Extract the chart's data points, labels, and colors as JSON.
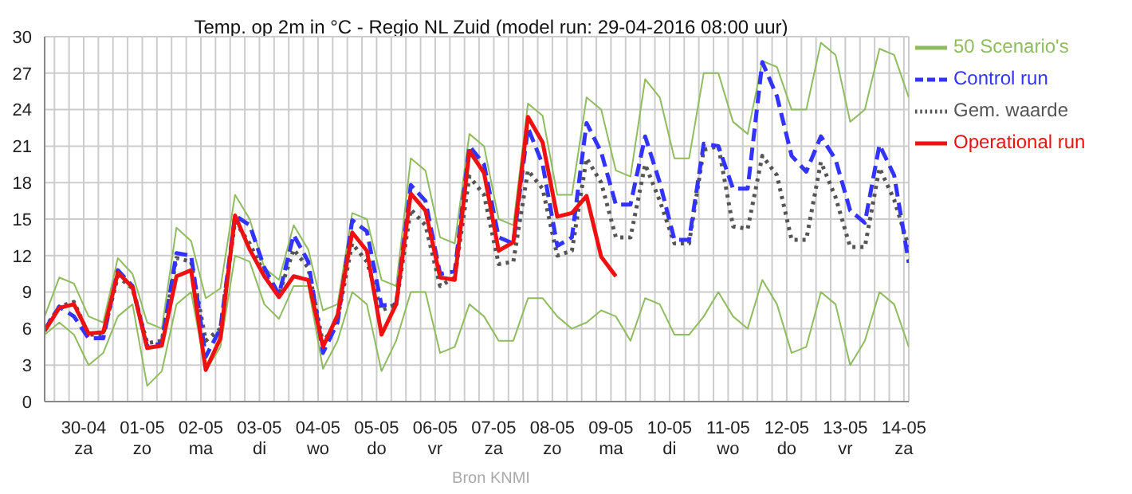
{
  "chart_data": {
    "type": "line",
    "title": "Temp. op 2m in °C - Regio NL Zuid (model run: 29-04-2016 08:00 uur)",
    "annotations": [
      "Bron KNMI"
    ],
    "x": [
      "2016-04-29T08:00",
      "2016-04-29T14:00",
      "2016-04-29T20:00",
      "2016-04-30T02:00",
      "2016-04-30T08:00",
      "2016-04-30T14:00",
      "2016-04-30T20:00",
      "2016-05-01T02:00",
      "2016-05-01T08:00",
      "2016-05-01T14:00",
      "2016-05-01T20:00",
      "2016-05-02T02:00",
      "2016-05-02T08:00",
      "2016-05-02T14:00",
      "2016-05-02T20:00",
      "2016-05-03T02:00",
      "2016-05-03T08:00",
      "2016-05-03T14:00",
      "2016-05-03T20:00",
      "2016-05-04T02:00",
      "2016-05-04T08:00",
      "2016-05-04T14:00",
      "2016-05-04T20:00",
      "2016-05-05T02:00",
      "2016-05-05T08:00",
      "2016-05-05T14:00",
      "2016-05-05T20:00",
      "2016-05-06T02:00",
      "2016-05-06T08:00",
      "2016-05-06T14:00",
      "2016-05-06T20:00",
      "2016-05-07T02:00",
      "2016-05-07T08:00",
      "2016-05-07T14:00",
      "2016-05-07T20:00",
      "2016-05-08T02:00",
      "2016-05-08T08:00",
      "2016-05-08T14:00",
      "2016-05-08T20:00",
      "2016-05-09T02:00",
      "2016-05-09T08:00",
      "2016-05-09T14:00",
      "2016-05-09T20:00",
      "2016-05-10T02:00",
      "2016-05-10T08:00",
      "2016-05-10T14:00",
      "2016-05-10T20:00",
      "2016-05-11T02:00",
      "2016-05-11T08:00",
      "2016-05-11T14:00",
      "2016-05-11T20:00",
      "2016-05-12T02:00",
      "2016-05-12T08:00",
      "2016-05-12T14:00",
      "2016-05-12T20:00",
      "2016-05-13T02:00",
      "2016-05-13T08:00",
      "2016-05-13T14:00",
      "2016-05-13T20:00",
      "2016-05-14T02:00"
    ],
    "series": [
      {
        "name": "50 Scenario's",
        "color": "#8fbc5f",
        "values": [
          7,
          10.2,
          9.7,
          7,
          6.5,
          11.8,
          10.5,
          6.5,
          6,
          14.3,
          13.2,
          8.5,
          9.3,
          17,
          15,
          11,
          10,
          14.5,
          12.5,
          7.5,
          8,
          15.5,
          15,
          10,
          9.5,
          20,
          19,
          13.5,
          13,
          22,
          21,
          15,
          14.5,
          24.5,
          23.5,
          17,
          17,
          25,
          24,
          19,
          18.5,
          26.5,
          25,
          20,
          20,
          27,
          27,
          23,
          22,
          28,
          27.5,
          24,
          24,
          29.5,
          28.5,
          23,
          24,
          29,
          28.5,
          25
        ]
      },
      {
        "color": "#8fbc5f",
        "values": [
          5.5,
          6.5,
          5.5,
          3,
          4,
          7,
          8,
          1.3,
          2.5,
          8,
          9,
          2.5,
          4.5,
          12,
          11.5,
          8,
          6.8,
          9.5,
          9.5,
          2.7,
          5,
          9,
          8,
          2.5,
          5,
          9,
          9,
          4,
          4.5,
          8,
          7,
          5,
          5,
          8.5,
          8.5,
          7,
          6,
          6.5,
          7.5,
          7,
          5,
          8.5,
          8,
          5.5,
          5.5,
          7,
          9,
          7,
          6,
          10,
          8,
          4,
          4.5,
          9,
          8,
          3,
          5,
          9,
          8,
          4.5
        ]
      },
      {
        "name": "Gem. waarde",
        "color": "#555555",
        "line_style": "dotted",
        "values": [
          6,
          7.8,
          8.2,
          5.5,
          5.5,
          10.3,
          9.3,
          4.8,
          5,
          11.8,
          11.5,
          5,
          6,
          14.8,
          13,
          10.5,
          8.8,
          12.5,
          11,
          4.8,
          6.8,
          13,
          11.5,
          7.5,
          8,
          15.8,
          14.5,
          9.5,
          10.2,
          18.5,
          17,
          11.3,
          11.5,
          19,
          17.5,
          12,
          12.4,
          20,
          18,
          13.5,
          13.5,
          19.5,
          16.5,
          13,
          13,
          20.7,
          21,
          14.4,
          14.2,
          20.2,
          18.6,
          13.3,
          13.3,
          19.7,
          16.8,
          12.7,
          12.7,
          19.2,
          16.6,
          12.7
        ]
      },
      {
        "name": "Control run",
        "color": "#3333ff",
        "line_style": "dashed",
        "values": [
          5.9,
          7.8,
          7,
          5.2,
          5.2,
          10.8,
          9.5,
          4.5,
          4.8,
          12.2,
          12,
          3.7,
          6,
          15.3,
          14.5,
          11,
          8.8,
          13.7,
          11.5,
          4,
          6.5,
          14.9,
          14,
          7.9,
          8,
          17.8,
          16.5,
          10.5,
          10.7,
          21,
          19.5,
          13.5,
          13,
          22.5,
          19.5,
          12.8,
          13.5,
          22.9,
          20.5,
          16.2,
          16.2,
          21.8,
          18,
          13.3,
          13.3,
          21.2,
          21,
          17.5,
          17.5,
          27.9,
          25.1,
          20.2,
          18.9,
          21.8,
          19.9,
          15.7,
          14.7,
          21.1,
          18.6,
          11.4
        ]
      },
      {
        "name": "Operational run",
        "color": "#ee1111",
        "line_style": "solid",
        "values": [
          5.8,
          7.7,
          8,
          5.6,
          5.7,
          10.6,
          9.4,
          4.4,
          4.6,
          10.3,
          10.8,
          2.6,
          5.2,
          15.3,
          12.5,
          10.3,
          8.6,
          10.3,
          10,
          4.5,
          7.1,
          13.9,
          12.4,
          5.5,
          8,
          17.1,
          15.7,
          10.2,
          10,
          20.6,
          18.8,
          12.4,
          13.1,
          23.4,
          21.3,
          15.2,
          15.5,
          16.9,
          11.9,
          10.3,
          null,
          null,
          null,
          null,
          null,
          null,
          null,
          null,
          null,
          null,
          null,
          null,
          null,
          null,
          null,
          null,
          null,
          null,
          null,
          null
        ]
      }
    ],
    "xlim": [
      "2016-04-29T08:00",
      "2016-05-14T02:00"
    ],
    "xticks": [
      {
        "value": "2016-04-29T12:00",
        "label": null
      },
      {
        "value": "2016-04-29T18:00",
        "label": null
      },
      {
        "value": "2016-04-30T00:00",
        "label": "30-04\nza"
      },
      {
        "value": "2016-04-30T06:00",
        "label": null
      },
      {
        "value": "2016-04-30T12:00",
        "label": null
      },
      {
        "value": "2016-04-30T18:00",
        "label": null
      },
      {
        "value": "2016-05-01T00:00",
        "label": "01-05\nzo"
      },
      {
        "value": "2016-05-01T06:00",
        "label": null
      },
      {
        "value": "2016-05-01T12:00",
        "label": null
      },
      {
        "value": "2016-05-01T18:00",
        "label": null
      },
      {
        "value": "2016-05-02T00:00",
        "label": "02-05\nma"
      },
      {
        "value": "2016-05-02T06:00",
        "label": null
      },
      {
        "value": "2016-05-02T12:00",
        "label": null
      },
      {
        "value": "2016-05-02T18:00",
        "label": null
      },
      {
        "value": "2016-05-03T00:00",
        "label": "03-05\ndi"
      },
      {
        "value": "2016-05-03T06:00",
        "label": null
      },
      {
        "value": "2016-05-03T12:00",
        "label": null
      },
      {
        "value": "2016-05-03T18:00",
        "label": null
      },
      {
        "value": "2016-05-04T00:00",
        "label": "04-05\nwo"
      },
      {
        "value": "2016-05-04T06:00",
        "label": null
      },
      {
        "value": "2016-05-04T12:00",
        "label": null
      },
      {
        "value": "2016-05-04T18:00",
        "label": null
      },
      {
        "value": "2016-05-05T00:00",
        "label": "05-05\ndo"
      },
      {
        "value": "2016-05-05T06:00",
        "label": null
      },
      {
        "value": "2016-05-05T12:00",
        "label": null
      },
      {
        "value": "2016-05-05T18:00",
        "label": null
      },
      {
        "value": "2016-05-06T00:00",
        "label": "06-05\nvr"
      },
      {
        "value": "2016-05-06T06:00",
        "label": null
      },
      {
        "value": "2016-05-06T12:00",
        "label": null
      },
      {
        "value": "2016-05-06T18:00",
        "label": null
      },
      {
        "value": "2016-05-07T00:00",
        "label": "07-05\nza"
      },
      {
        "value": "2016-05-07T06:00",
        "label": null
      },
      {
        "value": "2016-05-07T12:00",
        "label": null
      },
      {
        "value": "2016-05-07T18:00",
        "label": null
      },
      {
        "value": "2016-05-08T00:00",
        "label": "08-05\nzo"
      },
      {
        "value": "2016-05-08T06:00",
        "label": null
      },
      {
        "value": "2016-05-08T12:00",
        "label": null
      },
      {
        "value": "2016-05-08T18:00",
        "label": null
      },
      {
        "value": "2016-05-09T00:00",
        "label": "09-05\nma"
      },
      {
        "value": "2016-05-09T06:00",
        "label": null
      },
      {
        "value": "2016-05-09T12:00",
        "label": null
      },
      {
        "value": "2016-05-09T18:00",
        "label": null
      },
      {
        "value": "2016-05-10T00:00",
        "label": "10-05\ndi"
      },
      {
        "value": "2016-05-10T06:00",
        "label": null
      },
      {
        "value": "2016-05-10T12:00",
        "label": null
      },
      {
        "value": "2016-05-10T18:00",
        "label": null
      },
      {
        "value": "2016-05-11T00:00",
        "label": "11-05\nwo"
      },
      {
        "value": "2016-05-11T06:00",
        "label": null
      },
      {
        "value": "2016-05-11T12:00",
        "label": null
      },
      {
        "value": "2016-05-11T18:00",
        "label": null
      },
      {
        "value": "2016-05-12T00:00",
        "label": "12-05\ndo"
      },
      {
        "value": "2016-05-12T06:00",
        "label": null
      },
      {
        "value": "2016-05-12T12:00",
        "label": null
      },
      {
        "value": "2016-05-12T18:00",
        "label": null
      },
      {
        "value": "2016-05-13T00:00",
        "label": "13-05\nvr"
      },
      {
        "value": "2016-05-13T06:00",
        "label": null
      },
      {
        "value": "2016-05-13T12:00",
        "label": null
      },
      {
        "value": "2016-05-13T18:00",
        "label": null
      },
      {
        "value": "2016-05-14T00:00",
        "label": "14-05\nza"
      }
    ],
    "ylim": [
      0,
      30
    ],
    "yticks": [
      0,
      3,
      6,
      9,
      12,
      15,
      18,
      21,
      24,
      27,
      30
    ],
    "grid": true,
    "legend": "right",
    "marker": "none",
    "line_style": "solid"
  }
}
